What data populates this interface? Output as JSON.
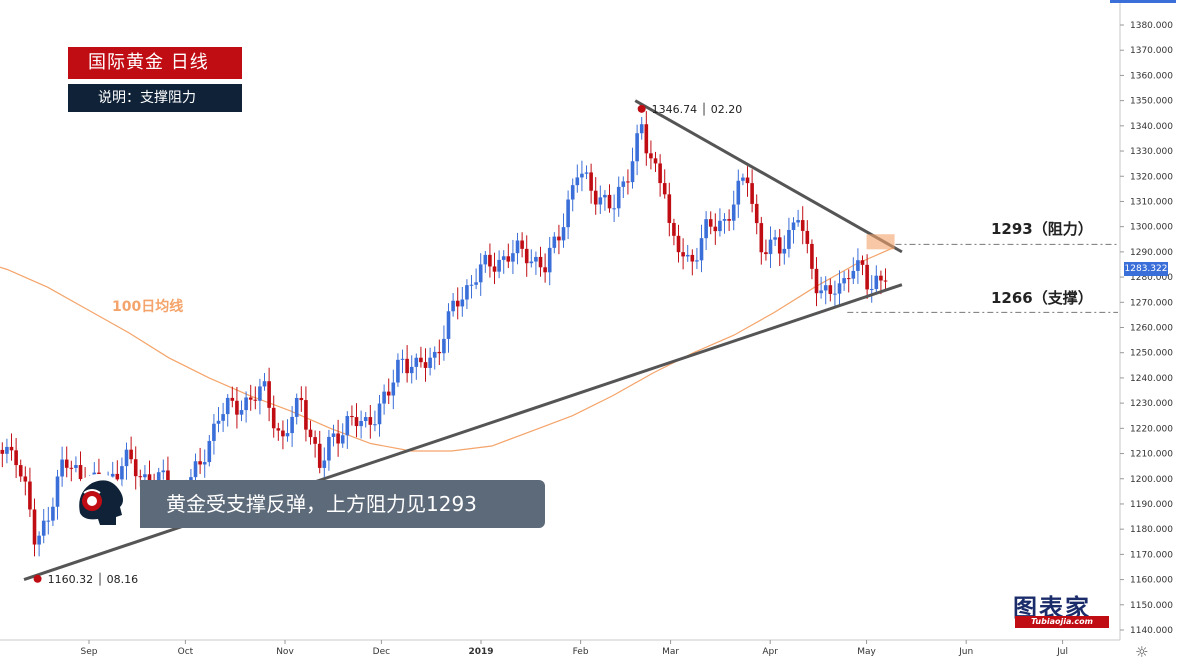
{
  "header": {
    "title": "国际黄金  日线",
    "subtitle": "说明：支撑阻力"
  },
  "annotations": {
    "ma_label": "100日均线",
    "resistance_label": "1293（阻力）",
    "support_label": "1266（支撑）",
    "high_point": "1346.74 │ 02.20",
    "low_point": "1160.32 │ 08.16",
    "banner": "黄金受支撑反弹，上方阻力见1293",
    "current_price": "1283.322"
  },
  "logo": {
    "main": "图表家",
    "sub": "Tubiaojia.com"
  },
  "colors": {
    "up": "#3a6ed8",
    "down": "#c00d14",
    "ma": "#f4a46a",
    "trendline": "#555555",
    "title_bg": "#c00d14",
    "subtitle_bg": "#0f2238"
  },
  "chart_data": {
    "type": "candlestick",
    "title": "国际黄金  日线",
    "y_axis": {
      "min": 1140,
      "max": 1380,
      "ticks": [
        1140,
        1150,
        1160,
        1170,
        1180,
        1190,
        1200,
        1210,
        1220,
        1230,
        1240,
        1250,
        1260,
        1270,
        1280,
        1290,
        1300,
        1310,
        1320,
        1330,
        1340,
        1350,
        1360,
        1370,
        1380
      ],
      "tick_labels": [
        "1140.000",
        "1150.000",
        "1160.000",
        "1170.000",
        "1180.000",
        "1190.000",
        "1200.000",
        "1210.000",
        "1220.000",
        "1230.000",
        "1240.000",
        "1250.000",
        "1260.000",
        "1270.000",
        "1280.000",
        "1290.000",
        "1300.000",
        "1310.000",
        "1320.000",
        "1330.000",
        "1340.000",
        "1350.000",
        "1360.000",
        "1370.000",
        "1380.000"
      ]
    },
    "x_axis": {
      "labels": [
        "Sep",
        "Oct",
        "Nov",
        "Dec",
        "2019",
        "Feb",
        "Mar",
        "Apr",
        "May",
        "Jun",
        "Jul"
      ]
    },
    "trend_points": [
      {
        "date": "2018-08-01",
        "close": 1217
      },
      {
        "date": "2018-08-06",
        "close": 1208
      },
      {
        "date": "2018-08-09",
        "close": 1212
      },
      {
        "date": "2018-08-13",
        "close": 1192
      },
      {
        "date": "2018-08-15",
        "close": 1175
      },
      {
        "date": "2018-08-16",
        "close": 1173
      },
      {
        "date": "2018-08-20",
        "close": 1190
      },
      {
        "date": "2018-08-24",
        "close": 1206
      },
      {
        "date": "2018-08-29",
        "close": 1202
      },
      {
        "date": "2018-09-05",
        "close": 1196
      },
      {
        "date": "2018-09-12",
        "close": 1208
      },
      {
        "date": "2018-09-17",
        "close": 1201
      },
      {
        "date": "2018-09-24",
        "close": 1199
      },
      {
        "date": "2018-09-28",
        "close": 1192
      },
      {
        "date": "2018-10-05",
        "close": 1203
      },
      {
        "date": "2018-10-11",
        "close": 1225
      },
      {
        "date": "2018-10-15",
        "close": 1228
      },
      {
        "date": "2018-10-22",
        "close": 1232
      },
      {
        "date": "2018-10-26",
        "close": 1235
      },
      {
        "date": "2018-10-31",
        "close": 1214
      },
      {
        "date": "2018-11-06",
        "close": 1232
      },
      {
        "date": "2018-11-12",
        "close": 1203
      },
      {
        "date": "2018-11-15",
        "close": 1215
      },
      {
        "date": "2018-11-20",
        "close": 1222
      },
      {
        "date": "2018-11-26",
        "close": 1222
      },
      {
        "date": "2018-12-03",
        "close": 1232
      },
      {
        "date": "2018-12-07",
        "close": 1249
      },
      {
        "date": "2018-12-12",
        "close": 1243
      },
      {
        "date": "2018-12-18",
        "close": 1250
      },
      {
        "date": "2018-12-24",
        "close": 1269
      },
      {
        "date": "2018-12-31",
        "close": 1282
      },
      {
        "date": "2019-01-04",
        "close": 1285
      },
      {
        "date": "2019-01-10",
        "close": 1289
      },
      {
        "date": "2019-01-15",
        "close": 1290
      },
      {
        "date": "2019-01-21",
        "close": 1283
      },
      {
        "date": "2019-01-25",
        "close": 1297
      },
      {
        "date": "2019-01-31",
        "close": 1321
      },
      {
        "date": "2019-02-05",
        "close": 1315
      },
      {
        "date": "2019-02-11",
        "close": 1306
      },
      {
        "date": "2019-02-15",
        "close": 1320
      },
      {
        "date": "2019-02-20",
        "close": 1339
      },
      {
        "date": "2019-02-22",
        "close": 1327
      },
      {
        "date": "2019-02-27",
        "close": 1319
      },
      {
        "date": "2019-03-01",
        "close": 1294
      },
      {
        "date": "2019-03-07",
        "close": 1286
      },
      {
        "date": "2019-03-12",
        "close": 1298
      },
      {
        "date": "2019-03-18",
        "close": 1303
      },
      {
        "date": "2019-03-21",
        "close": 1311
      },
      {
        "date": "2019-03-25",
        "close": 1320
      },
      {
        "date": "2019-03-29",
        "close": 1292
      },
      {
        "date": "2019-04-04",
        "close": 1291
      },
      {
        "date": "2019-04-10",
        "close": 1306
      },
      {
        "date": "2019-04-12",
        "close": 1290
      },
      {
        "date": "2019-04-16",
        "close": 1276
      },
      {
        "date": "2019-04-19",
        "close": 1275
      },
      {
        "date": "2019-04-23",
        "close": 1273
      },
      {
        "date": "2019-04-26",
        "close": 1286
      },
      {
        "date": "2019-04-30",
        "close": 1284
      },
      {
        "date": "2019-05-02",
        "close": 1271
      },
      {
        "date": "2019-05-06",
        "close": 1283
      }
    ],
    "ma100": [
      1288,
      1283,
      1276,
      1267,
      1258,
      1248,
      1240,
      1233,
      1227,
      1220,
      1214,
      1211,
      1211,
      1213,
      1219,
      1225,
      1233,
      1242,
      1250,
      1257,
      1266,
      1276,
      1285,
      1292
    ],
    "levels": {
      "resistance": 1293,
      "support": 1266
    },
    "high": {
      "value": 1346.74,
      "date": "02.20"
    },
    "low": {
      "value": 1160.32,
      "date": "08.16"
    }
  }
}
